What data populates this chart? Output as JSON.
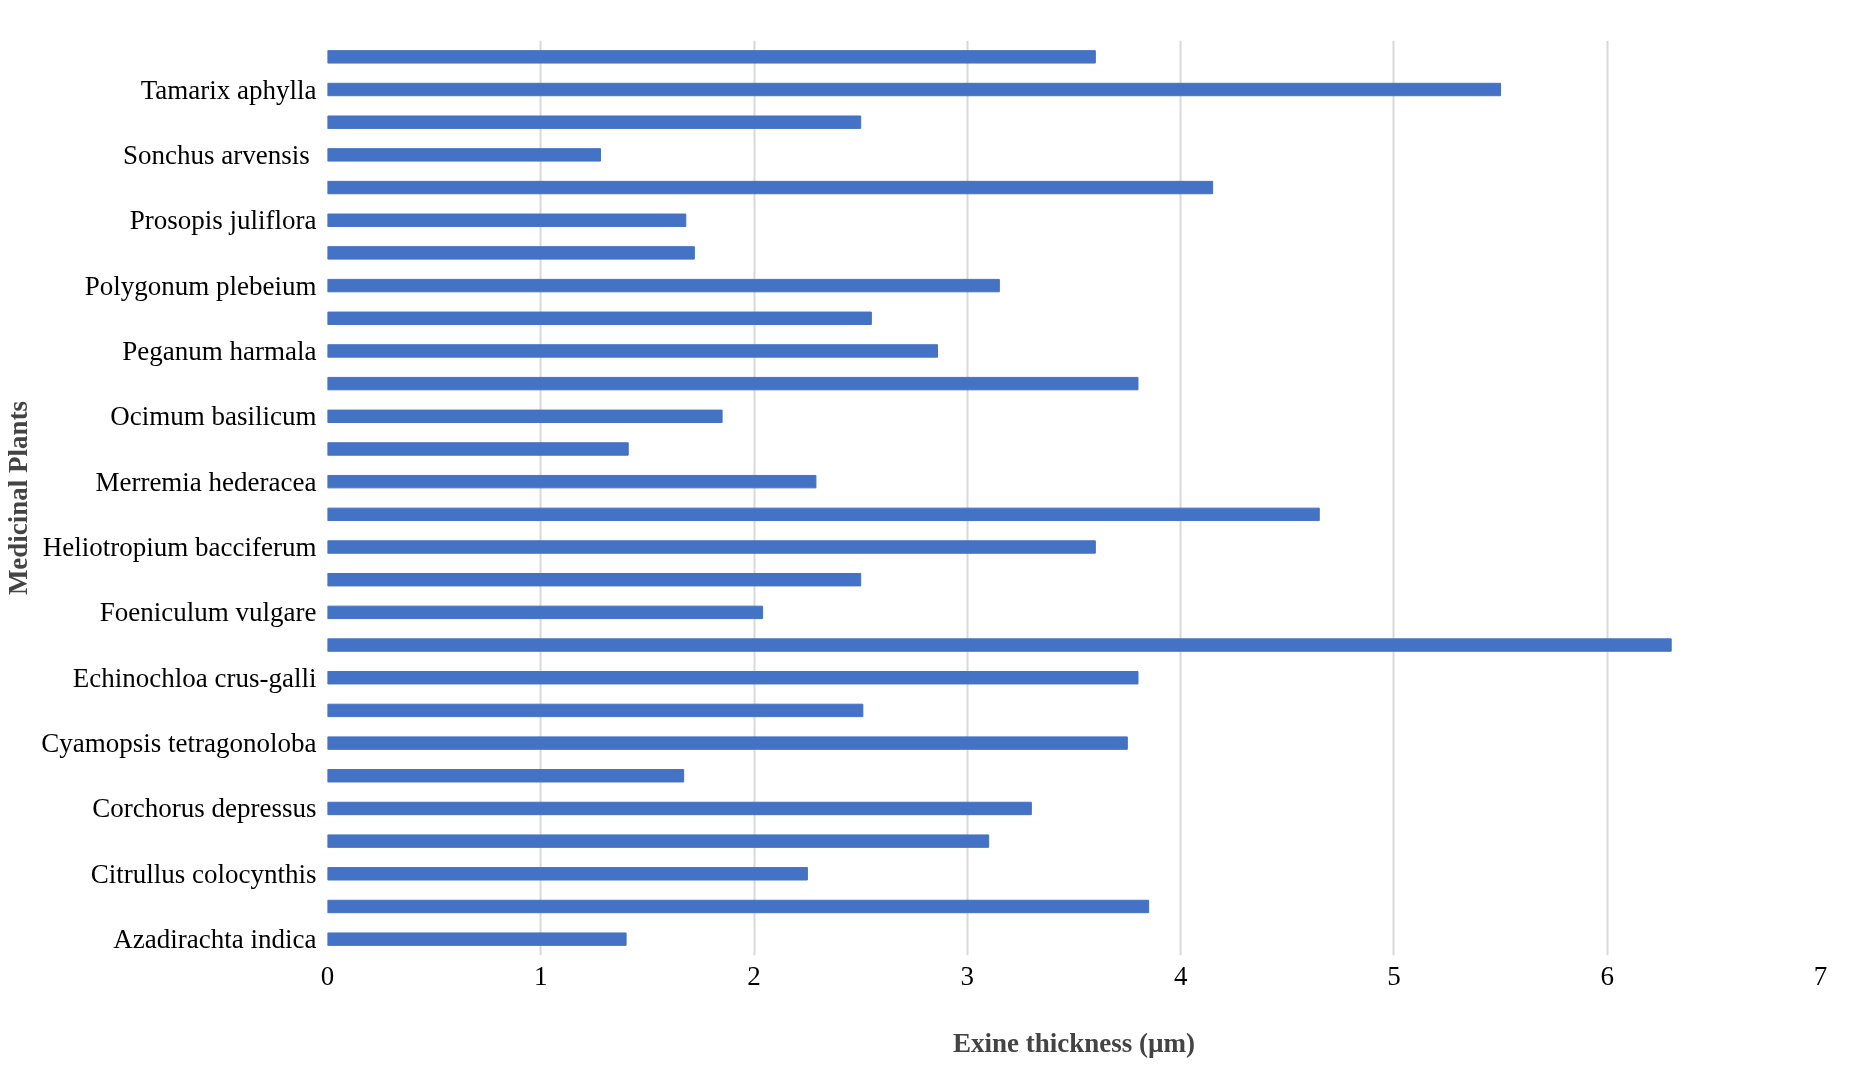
{
  "chart_data": {
    "type": "bar",
    "orientation": "horizontal",
    "xlabel": "Exine thickness (µm)",
    "ylabel": "Medicinal Plants",
    "categories": [
      null,
      "Tamarix aphylla",
      null,
      "Sonchus  arvensis",
      null,
      "Prosopis juliflora",
      null,
      "Polygonum plebeium",
      null,
      "Peganum harmala",
      null,
      "Ocimum basilicum",
      null,
      "Merremia hederacea",
      null,
      "Heliotropium bacciferum",
      null,
      "Foeniculum vulgare",
      null,
      "Echinochloa crus-galli",
      null,
      "Cyamopsis tetragonoloba",
      null,
      "Corchorus depressus",
      null,
      "Citrullus colocynthis",
      null,
      "Azadirachta indica"
    ],
    "values": [
      3.6,
      5.5,
      2.5,
      1.28,
      4.15,
      1.68,
      1.72,
      3.15,
      2.55,
      2.86,
      3.8,
      1.85,
      1.41,
      2.29,
      4.65,
      3.6,
      2.5,
      2.04,
      6.3,
      3.8,
      2.51,
      3.75,
      1.67,
      3.3,
      3.1,
      2.25,
      3.85,
      1.4
    ],
    "color": "#4472c4",
    "xlim": [
      0,
      7
    ],
    "xticks": [
      0,
      1,
      2,
      3,
      4,
      5,
      6,
      7
    ],
    "grid": "x"
  }
}
